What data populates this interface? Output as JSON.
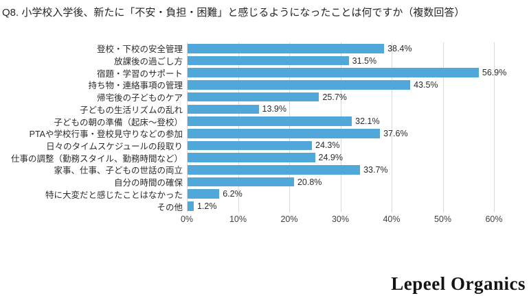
{
  "title": "Q8. 小学校入学後、新たに「不安・負担・困難」と感じるようになったことは何ですか（複数回答）",
  "chart_data": {
    "type": "bar",
    "orientation": "horizontal",
    "title": "Q8. 小学校入学後、新たに「不安・負担・困難」と感じるようになったことは何ですか（複数回答）",
    "categories": [
      "登校・下校の安全管理",
      "放課後の過ごし方",
      "宿題・学習のサポート",
      "持ち物・連絡事項の管理",
      "帰宅後の子どものケア",
      "子どもの生活リズムの乱れ",
      "子どもの朝の準備（起床～登校）",
      "PTAや学校行事・登校見守りなどの参加",
      "日々のタイムスケジュールの段取り",
      "仕事の調整（勤務スタイル、勤務時間など）",
      "家事、仕事、子どもの世話の両立",
      "自分の時間の確保",
      "特に大変だと感じたことはなかった",
      "その他"
    ],
    "values": [
      38.4,
      31.5,
      56.9,
      43.5,
      25.7,
      13.9,
      32.1,
      37.6,
      24.3,
      24.9,
      33.7,
      20.8,
      6.2,
      1.2
    ],
    "value_labels": [
      "38.4%",
      "31.5%",
      "56.9%",
      "43.5%",
      "25.7%",
      "13.9%",
      "32.1%",
      "37.6%",
      "24.3%",
      "24.9%",
      "33.7%",
      "20.8%",
      "6.2%",
      "1.2%"
    ],
    "xlabel": "",
    "ylabel": "",
    "xlim": [
      0,
      60
    ],
    "x_ticks": [
      0,
      10,
      20,
      30,
      40,
      50,
      60
    ],
    "x_tick_labels": [
      "0%",
      "10%",
      "20%",
      "30%",
      "40%",
      "50%",
      "60%"
    ],
    "grid": "vertical-only",
    "legend": "none",
    "bar_color": "#4fa7da",
    "grid_color": "#d9d9d9"
  },
  "footer": {
    "logo_text": "Lepeel Organics"
  }
}
